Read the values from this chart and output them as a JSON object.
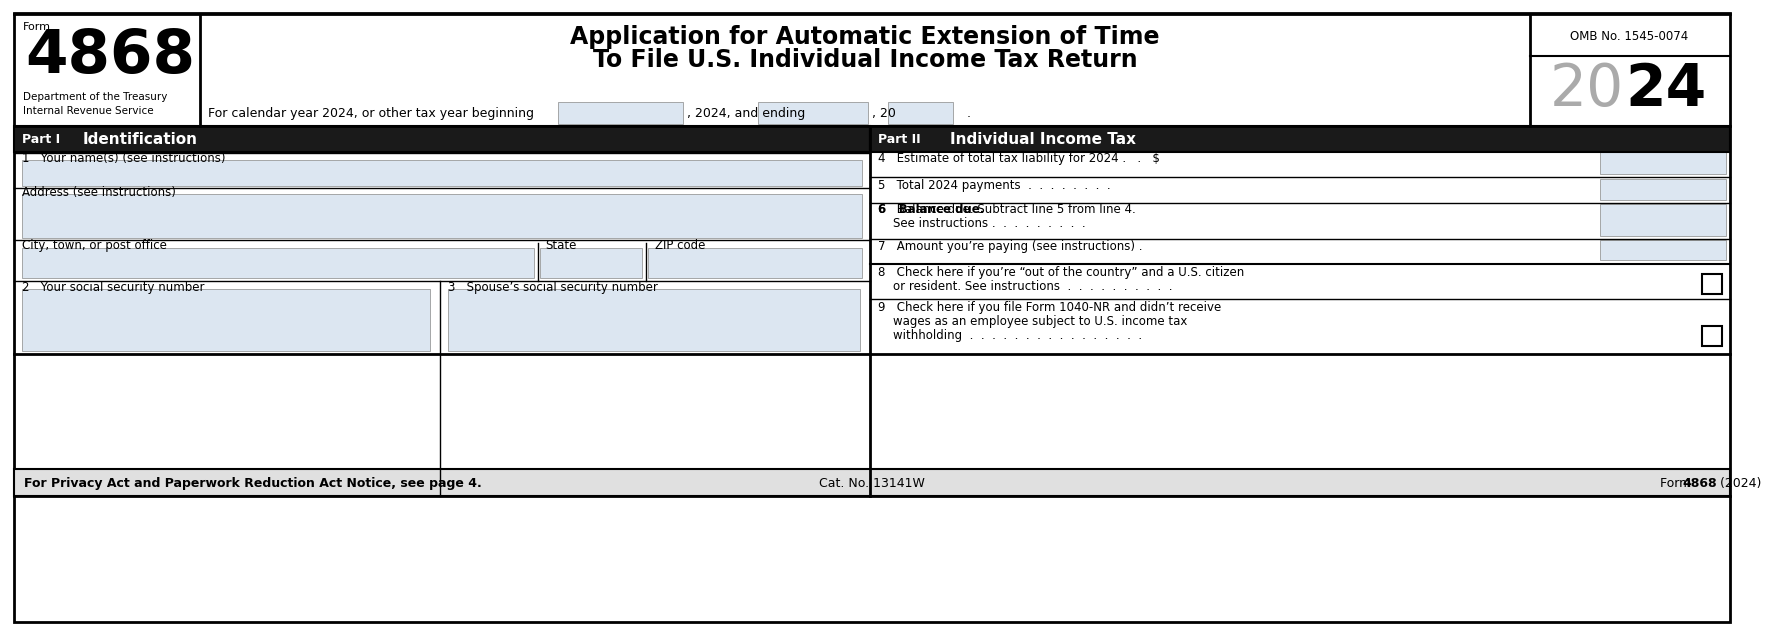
{
  "form_number": "4868",
  "form_label": "Form",
  "omb": "OMB No. 1545-0074",
  "dept_line1": "Department of the Treasury",
  "dept_line2": "Internal Revenue Service",
  "cal_year_text": "For calendar year 2024, or other tax year beginning",
  "cal_year_mid": ", 2024, and ending",
  "cal_year_end": ", 20",
  "part1_label": "Part I",
  "part1_title": "Identification",
  "part2_label": "Part II",
  "part2_title": "Individual Income Tax",
  "field1_label": "1   Your name(s) (see instructions)",
  "field_addr_label": "Address (see instructions)",
  "field_city_label": "City, town, or post office",
  "field_state_label": "State",
  "field_zip_label": "ZIP code",
  "field2_label": "2   Your social security number",
  "field3_label": "3   Spouse’s social security number",
  "field4_label": "4   Estimate of total tax liability for 2024 .   .   $",
  "field5_label": "5   Total 2024 payments  .  .  .  .  .  .  .  .",
  "field6_label1": "6   Balance due. Subtract line 5 from line 4.",
  "field6_label2": "    See instructions .  .  .  .  .  .  .  .  .",
  "field7_label": "7   Amount you’re paying (see instructions) .",
  "field8_line1": "8   Check here if you’re “out of the country” and a U.S. citizen",
  "field8_line2": "    or resident. See instructions  .  .  .  .  .  .  .  .  .  .",
  "field9_line1": "9   Check here if you file Form 1040-NR and didn’t receive",
  "field9_line2": "    wages as an employee subject to U.S. income tax",
  "field9_line3": "    withholding  .  .  .  .  .  .  .  .  .  .  .  .  .  .  .  .",
  "footer_left": "For Privacy Act and Paperwork Reduction Act Notice, see page 4.",
  "footer_mid": "Cat. No. 13141W",
  "footer_right_plain": "Form ",
  "footer_right_bold": "4868",
  "footer_right_end": " (2024)",
  "bg_color": "#ffffff",
  "part_header_bg": "#1a1a1a",
  "part_header_fg": "#ffffff",
  "field_fill": "#dce6f1",
  "footer_bg": "#e0e0e0",
  "title_line1": "Application for Automatic Extension of Time",
  "title_line2": "To File U.S. Individual Income Tax Return"
}
